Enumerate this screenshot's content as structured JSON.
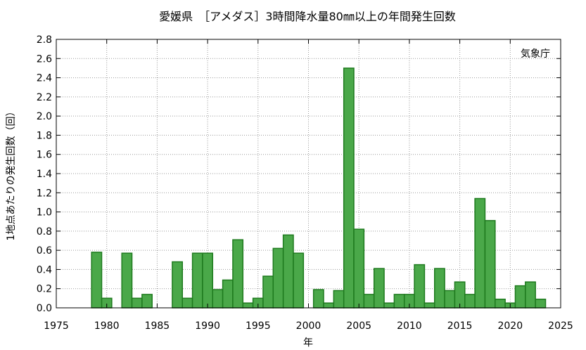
{
  "chart_data": {
    "type": "bar",
    "title": "愛媛県　［アメダス］3時間降水量80㎜以上の年間発生回数",
    "xlabel": "年",
    "ylabel": "1地点あたりの発生回数（回）",
    "source_note": "気象庁",
    "xlim": [
      1975,
      2025
    ],
    "ylim": [
      0,
      2.8
    ],
    "x_ticks": [
      1975,
      1980,
      1985,
      1990,
      1995,
      2000,
      2005,
      2010,
      2015,
      2020,
      2025
    ],
    "y_ticks": [
      0.0,
      0.2,
      0.4,
      0.6,
      0.8,
      1.0,
      1.2,
      1.4,
      1.6,
      1.8,
      2.0,
      2.2,
      2.4,
      2.6,
      2.8
    ],
    "grid": true,
    "bar_color": "#4aa849",
    "bar_edge_color": "#1e7a1e",
    "x": [
      1976,
      1977,
      1978,
      1979,
      1980,
      1981,
      1982,
      1983,
      1984,
      1985,
      1986,
      1987,
      1988,
      1989,
      1990,
      1991,
      1992,
      1993,
      1994,
      1995,
      1996,
      1997,
      1998,
      1999,
      2000,
      2001,
      2002,
      2003,
      2004,
      2005,
      2006,
      2007,
      2008,
      2009,
      2010,
      2011,
      2012,
      2013,
      2014,
      2015,
      2016,
      2017,
      2018,
      2019,
      2020,
      2021,
      2022,
      2023
    ],
    "values": [
      0,
      0,
      0,
      0.58,
      0.1,
      0,
      0.57,
      0.1,
      0.14,
      0,
      0,
      0.48,
      0.1,
      0.57,
      0.57,
      0.19,
      0.29,
      0.71,
      0.05,
      0.1,
      0.33,
      0.62,
      0.76,
      0.57,
      0,
      0.19,
      0.05,
      0.18,
      2.5,
      0.82,
      0.14,
      0.41,
      0.05,
      0.14,
      0.14,
      0.45,
      0.05,
      0.41,
      0.18,
      0.27,
      0.14,
      1.14,
      0.91,
      0.09,
      0.05,
      0.23,
      0.27,
      0.09
    ]
  }
}
